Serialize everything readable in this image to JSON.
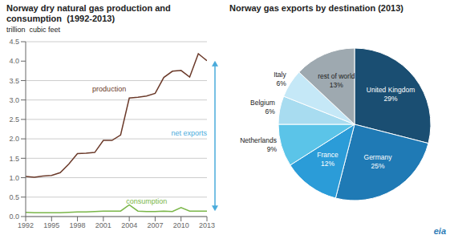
{
  "chart_data": [
    {
      "type": "line",
      "title": "Norway dry natural gas production and\nconsumption  (1992-2013)",
      "y_label": "trillion  cubic feet",
      "x": [
        1992,
        1993,
        1994,
        1995,
        1996,
        1997,
        1998,
        1999,
        2000,
        2001,
        2002,
        2003,
        2004,
        2005,
        2006,
        2007,
        2008,
        2009,
        2010,
        2011,
        2012,
        2013
      ],
      "series": [
        {
          "name": "production",
          "color": "#6B3A2A",
          "values": [
            1.03,
            1.01,
            1.04,
            1.06,
            1.13,
            1.35,
            1.62,
            1.63,
            1.65,
            1.96,
            1.96,
            2.1,
            3.05,
            3.07,
            3.1,
            3.17,
            3.58,
            3.74,
            3.76,
            3.59,
            4.19,
            4.01
          ]
        },
        {
          "name": "consumption",
          "color": "#7AB648",
          "values": [
            0.11,
            0.1,
            0.1,
            0.1,
            0.1,
            0.11,
            0.12,
            0.12,
            0.13,
            0.14,
            0.14,
            0.14,
            0.3,
            0.14,
            0.13,
            0.13,
            0.14,
            0.13,
            0.23,
            0.14,
            0.14,
            0.14
          ]
        }
      ],
      "xlim": [
        1992,
        2013
      ],
      "xticks": [
        1992,
        1995,
        1998,
        2001,
        2004,
        2007,
        2010,
        2013
      ],
      "ylim": [
        0,
        4.5
      ],
      "yticks": [
        {
          "value": 0,
          "label": "0.0"
        },
        0.5,
        {
          "value": 1,
          "label": "1.0"
        },
        1.5,
        {
          "value": 2,
          "label": "2.0"
        },
        2.5,
        {
          "value": 3,
          "label": "3.0"
        },
        3.5,
        {
          "value": 4,
          "label": "4.0"
        },
        4.5
      ],
      "grid": true,
      "annotations": [
        {
          "text": "net exports",
          "color": "#4AABDB"
        }
      ]
    },
    {
      "type": "pie",
      "title": "Norway gas exports by destination (2013)",
      "categories": [
        "United Kingdom",
        "Germany",
        "France",
        "Netherlands",
        "Belgium",
        "Italy",
        "rest of world"
      ],
      "values": [
        29,
        25,
        12,
        9,
        6,
        6,
        13
      ],
      "value_labels": [
        "29%",
        "25%",
        "12%",
        "9%",
        "6%",
        "6%",
        "13%"
      ],
      "colors": [
        "#1A4E72",
        "#1F7AB5",
        "#2B9CD8",
        "#5BC4E8",
        "#A8DCF0",
        "#C5E8F7",
        "#9EA9B0"
      ],
      "data_labels": true,
      "annotations": [
        {
          "text": "eia",
          "color": "#2C7BB6"
        }
      ]
    }
  ]
}
